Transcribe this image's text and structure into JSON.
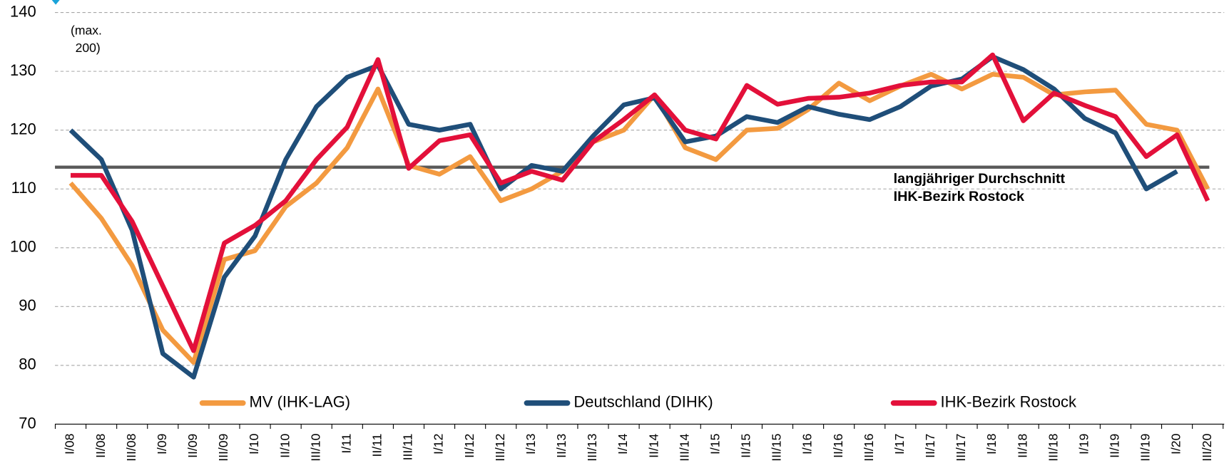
{
  "chart_data": {
    "type": "line",
    "categories": [
      "I/08",
      "II/08",
      "III/08",
      "I/09",
      "II/09",
      "III/09",
      "I/10",
      "II/10",
      "III/10",
      "I/11",
      "II/11",
      "III/11",
      "I/12",
      "II/12",
      "III/12",
      "I/13",
      "II/13",
      "III/13",
      "I/14",
      "II/14",
      "III/14",
      "I/15",
      "II/15",
      "III/15",
      "I/16",
      "II/16",
      "III/16",
      "I/17",
      "II/17",
      "III/17",
      "I/18",
      "II/18",
      "III/18",
      "I/19",
      "II/19",
      "III/19",
      "I/20",
      "III/20"
    ],
    "series": [
      {
        "name": "MV (IHK-LAG)",
        "color": "#f39a40",
        "values": [
          111,
          105,
          97,
          86,
          80.5,
          98,
          99.5,
          107,
          111,
          117,
          127,
          114,
          112.5,
          115.5,
          108,
          110,
          113,
          118,
          120,
          126,
          117,
          115,
          120,
          120.3,
          123.5,
          128,
          125,
          127.5,
          129.5,
          127,
          129.5,
          129,
          126,
          126.5,
          126.8,
          121,
          120,
          110
        ]
      },
      {
        "name": "Deutschland (DIHK)",
        "color": "#1f4e79",
        "values": [
          120,
          115,
          103,
          82,
          78,
          95,
          102,
          115,
          124,
          129,
          131,
          121,
          120,
          121,
          110,
          114,
          113,
          119,
          124.3,
          125.5,
          118,
          119,
          122.3,
          121.3,
          124,
          122.7,
          121.8,
          124,
          127.5,
          128.7,
          132.5,
          130.3,
          127,
          122,
          119.5,
          110,
          113,
          null
        ]
      },
      {
        "name": "IHK-Bezirk Rostock",
        "color": "#e3103a",
        "values": [
          112.3,
          112.3,
          104.5,
          93.5,
          82.5,
          100.8,
          103.8,
          108,
          115,
          120.5,
          132,
          113.5,
          118.2,
          119.2,
          111,
          113,
          111.5,
          118,
          121.8,
          126,
          120,
          118.5,
          127.6,
          124.4,
          125.4,
          125.6,
          126.3,
          127.6,
          128.2,
          128.2,
          132.8,
          121.6,
          126.3,
          124.2,
          122.3,
          115.5,
          119.2,
          108
        ]
      }
    ],
    "reference_line": {
      "value": 113.7,
      "color": "#595959",
      "label": [
        "langjähriger Durchschnitt",
        "IHK-Bezirk Rostock"
      ]
    },
    "annotation": [
      "(max.",
      "200)"
    ],
    "ylim": [
      70,
      140
    ],
    "yticks": [
      70,
      80,
      90,
      100,
      110,
      120,
      130,
      140
    ],
    "grid": true,
    "legend": "bottom"
  }
}
